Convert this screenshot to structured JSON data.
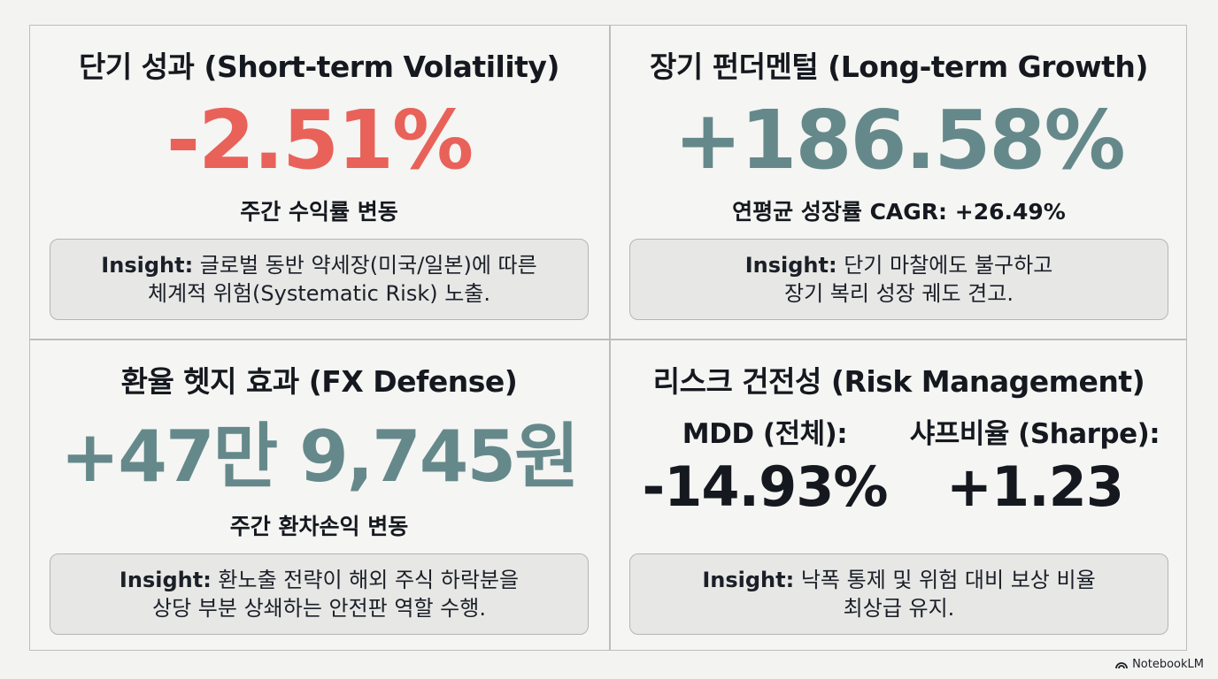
{
  "quadrants": {
    "short_term": {
      "title": "단기 성과 (Short-term Volatility)",
      "value": "-2.51%",
      "subtitle": "주간 수익률 변동",
      "insight_label": "Insight:",
      "insight_line1": " 글로벌 동반 약세장(미국/일본)에 따른",
      "insight_line2": "체계적 위험(Systematic Risk) 노출."
    },
    "long_term": {
      "title": "장기 펀더멘털 (Long-term Growth)",
      "value": "+186.58%",
      "subtitle": "연평균 성장률 CAGR: +26.49%",
      "insight_label": "Insight:",
      "insight_line1": " 단기 마찰에도 불구하고",
      "insight_line2": "장기 복리 성장 궤도 견고."
    },
    "fx_defense": {
      "title": "환율 헷지 효과 (FX Defense)",
      "value": "+47만 9,745원",
      "subtitle": "주간 환차손익 변동",
      "insight_label": "Insight:",
      "insight_line1": " 환노출 전략이 해외 주식 하락분을",
      "insight_line2": "상당 부분 상쇄하는 안전판 역할 수행."
    },
    "risk": {
      "title": "리스크 건전성 (Risk Management)",
      "mdd_label": "MDD (전체):",
      "mdd_value": "-14.93%",
      "sharpe_label": "샤프비율 (Sharpe):",
      "sharpe_value": "+1.23",
      "insight_label": "Insight:",
      "insight_line1": " 낙폭 통제 및 위험 대비 보상 비율",
      "insight_line2": "최상급 유지."
    }
  },
  "brand": {
    "name": "NotebookLM",
    "icon": "notebooklm-logo-icon"
  },
  "colors": {
    "negative": "#e8625a",
    "positive": "#65898a",
    "text": "#15191f"
  }
}
